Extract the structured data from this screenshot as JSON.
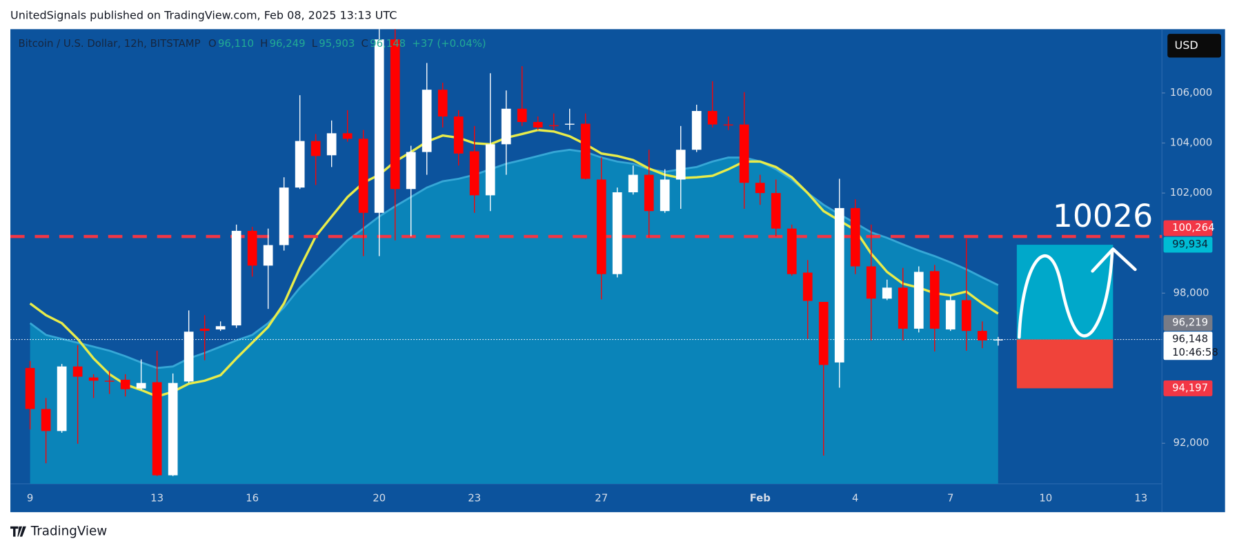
{
  "header": {
    "published": "UnitedSignals published on TradingView.com, Feb 08, 2025 13:13 UTC"
  },
  "footer": {
    "brand": "TradingView"
  },
  "chart_data": {
    "type": "candlestick",
    "title": "Bitcoin / U.S. Dollar, 12h, BITSTAMP",
    "ohlc_legend": [
      {
        "letter": "O",
        "value": "96,110"
      },
      {
        "letter": "H",
        "value": "96,249"
      },
      {
        "letter": "L",
        "value": "95,903"
      },
      {
        "letter": "C",
        "value": "96,148"
      }
    ],
    "change": "+37 (+0.04%)",
    "currency": "USD",
    "annotation": "10026",
    "up_color": "#ffffff",
    "down_color": "#ff0000",
    "categories": [
      "9",
      null,
      null,
      null,
      null,
      null,
      null,
      null,
      "13",
      null,
      null,
      null,
      null,
      null,
      "16",
      null,
      null,
      null,
      null,
      null,
      null,
      null,
      "20",
      null,
      null,
      null,
      null,
      null,
      "23",
      null,
      null,
      null,
      null,
      null,
      null,
      null,
      "27",
      null,
      null,
      null,
      null,
      null,
      null,
      null,
      null,
      null,
      "Feb",
      null,
      null,
      null,
      null,
      null,
      "4",
      null,
      null,
      null,
      null,
      null,
      "7",
      null,
      null,
      null,
      null,
      null,
      "10",
      null,
      null,
      null,
      null,
      null,
      "13"
    ],
    "open": [
      95010,
      93370,
      92490,
      95070,
      94630,
      94500,
      94540,
      94190,
      94440,
      90720,
      94470,
      96580,
      96550,
      96710,
      100490,
      99100,
      99920,
      102220,
      104080,
      103510,
      104390,
      104170,
      101210,
      108140,
      102160,
      103640,
      106130,
      105060,
      103670,
      101910,
      103950,
      105370,
      104840,
      104710,
      104740,
      104770,
      102540,
      98760,
      102030,
      102730,
      101280,
      102540,
      103730,
      105280,
      104740,
      104740,
      102410,
      102000,
      100580,
      98820,
      97650,
      95230,
      101400,
      99070,
      97780,
      98220,
      96580,
      98880,
      96550,
      97720,
      96490,
      96110,
      null,
      null,
      null,
      null,
      null,
      null,
      null,
      null,
      null
    ],
    "high": [
      95290,
      93810,
      95170,
      95920,
      94760,
      94910,
      94760,
      95350,
      95700,
      94790,
      97310,
      97120,
      96870,
      100740,
      100650,
      100580,
      102630,
      105910,
      104360,
      104900,
      105310,
      104520,
      108550,
      108550,
      103890,
      107200,
      106410,
      105310,
      104680,
      106790,
      106100,
      107070,
      105060,
      105180,
      105370,
      105180,
      103420,
      102220,
      103100,
      103730,
      102950,
      104680,
      105530,
      106470,
      105060,
      106030,
      102730,
      102540,
      100740,
      99320,
      97650,
      102570,
      101750,
      100740,
      98540,
      99010,
      99070,
      99130,
      97910,
      100170,
      96870,
      96249,
      null,
      null,
      null,
      null,
      null,
      null,
      null,
      null,
      null
    ],
    "low": [
      92550,
      91200,
      92420,
      91980,
      93810,
      93970,
      93870,
      94130,
      90690,
      90690,
      94410,
      95320,
      96490,
      96610,
      98660,
      97370,
      99700,
      102160,
      102320,
      103040,
      104050,
      99480,
      99480,
      100110,
      100270,
      102730,
      104620,
      103100,
      101210,
      101280,
      102730,
      104680,
      104520,
      104520,
      104520,
      102540,
      97750,
      98630,
      101940,
      100210,
      101210,
      101370,
      103640,
      104620,
      104520,
      101370,
      101530,
      100270,
      98690,
      96170,
      91510,
      94220,
      98760,
      96110,
      97720,
      96110,
      96430,
      95670,
      96490,
      95700,
      95800,
      95903,
      null,
      null,
      null,
      null,
      null,
      null,
      null,
      null,
      null
    ],
    "close": [
      93370,
      92490,
      95070,
      94660,
      94500,
      94480,
      94160,
      94410,
      90720,
      94410,
      96460,
      96490,
      96680,
      100490,
      99100,
      99920,
      102220,
      104080,
      103480,
      104390,
      104170,
      101210,
      108140,
      102160,
      103640,
      106130,
      105060,
      103580,
      101910,
      103950,
      105370,
      104840,
      104620,
      104680,
      104770,
      102570,
      98760,
      102030,
      102730,
      101280,
      102540,
      103730,
      105280,
      104740,
      104710,
      102410,
      102000,
      100580,
      98760,
      97690,
      95130,
      101400,
      99070,
      97780,
      98220,
      96580,
      98850,
      96580,
      97720,
      96490,
      96110,
      96148,
      null,
      null,
      null,
      null,
      null,
      null,
      null,
      null,
      null
    ],
    "overlays": [
      {
        "kind": "area",
        "color": "#0a84b9",
        "line_color": "#36a7d6",
        "values": [
          96800,
          96330,
          96170,
          96020,
          95860,
          95700,
          95480,
          95230,
          95010,
          95070,
          95390,
          95610,
          95860,
          96110,
          96330,
          96800,
          97430,
          98220,
          98850,
          99480,
          100110,
          100580,
          101060,
          101470,
          101840,
          102220,
          102470,
          102570,
          102730,
          102950,
          103170,
          103320,
          103480,
          103640,
          103730,
          103640,
          103420,
          103260,
          103170,
          102950,
          102850,
          102950,
          103040,
          103260,
          103420,
          103420,
          103260,
          102950,
          102540,
          102000,
          101530,
          101150,
          100800,
          100430,
          100210,
          99950,
          99700,
          99480,
          99230,
          98950,
          98630,
          98320,
          null,
          null,
          null,
          null,
          null,
          null,
          null,
          null,
          null
        ]
      },
      {
        "kind": "line",
        "color": "#e8ec4a",
        "values": [
          97590,
          97120,
          96800,
          96170,
          95390,
          94760,
          94350,
          94130,
          93870,
          94060,
          94380,
          94500,
          94720,
          95390,
          96020,
          96650,
          97590,
          99010,
          100270,
          101060,
          101840,
          102410,
          102730,
          103260,
          103640,
          104050,
          104300,
          104210,
          103990,
          103950,
          104210,
          104360,
          104520,
          104460,
          104270,
          103950,
          103580,
          103480,
          103320,
          102980,
          102730,
          102600,
          102630,
          102690,
          102950,
          103260,
          103260,
          103040,
          102630,
          102000,
          101280,
          100900,
          100520,
          99580,
          98850,
          98380,
          98220,
          98000,
          97910,
          98060,
          97590,
          97180,
          null,
          null,
          null,
          null,
          null,
          null,
          null,
          null,
          null
        ]
      }
    ],
    "ylim": [
      90380,
      108550
    ],
    "yticks": [
      {
        "value": 92000,
        "label": "92,000"
      },
      {
        "value": 98000,
        "label": "98,000"
      },
      {
        "value": 102000,
        "label": "102,000"
      },
      {
        "value": 104000,
        "label": "104,000"
      },
      {
        "value": 106000,
        "label": "106,000"
      }
    ],
    "levels": [
      {
        "value": 100264,
        "label": "100,264",
        "color": "#f23645",
        "text_color": "#ffffff",
        "line": "dashed"
      },
      {
        "value": 99934,
        "label": "99,934",
        "color": "#00bcd4",
        "text_color": "#0b1e33",
        "role": "target"
      },
      {
        "value": 96219,
        "label": "96,219",
        "color": "#787b86",
        "text_color": "#ffffff"
      },
      {
        "value": 96148,
        "label": "96,148",
        "sublabel": "10:46:58",
        "color": "#ffffff",
        "text_color": "#131722",
        "line": "dotted",
        "role": "entry"
      },
      {
        "value": 94197,
        "label": "94,197",
        "color": "#f23645",
        "text_color": "#ffffff",
        "role": "stop"
      }
    ]
  }
}
